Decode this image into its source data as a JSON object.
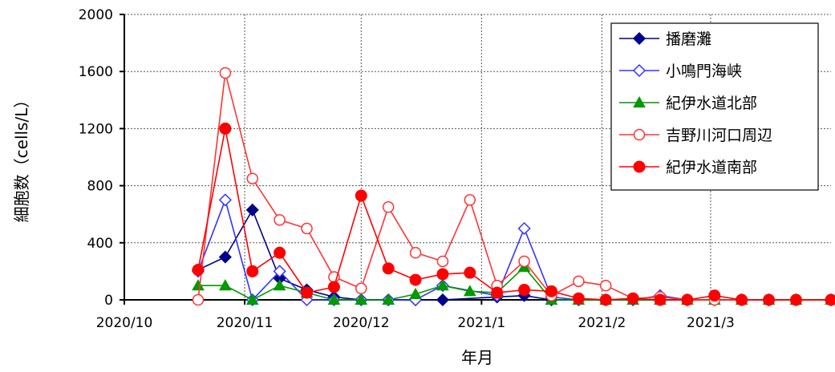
{
  "chart_data": {
    "type": "line",
    "xlabel": "年月",
    "ylabel": "細胞数（cells/L）",
    "ylim": [
      0,
      2000
    ],
    "yticks": [
      "0",
      "400",
      "800",
      "1200",
      "1600",
      "2000"
    ],
    "xticks": [
      {
        "t": 0,
        "label": "2020/10"
      },
      {
        "t": 31,
        "label": "2020/11"
      },
      {
        "t": 61,
        "label": "2020/12"
      },
      {
        "t": 92,
        "label": "2021/1"
      },
      {
        "t": 123,
        "label": "2021/2"
      },
      {
        "t": 151,
        "label": "2021/3"
      }
    ],
    "xlim": [
      0,
      182
    ],
    "grid": true,
    "legend_position": "top-right",
    "series": [
      {
        "name": "播磨灘",
        "color": "#00008b",
        "marker": "diamond-filled",
        "points": [
          [
            19,
            210
          ],
          [
            26,
            300
          ],
          [
            33,
            630
          ],
          [
            40,
            150
          ],
          [
            47,
            70
          ],
          [
            54,
            20
          ],
          [
            61,
            0
          ],
          [
            68,
            0
          ],
          [
            75,
            0
          ],
          [
            82,
            0
          ],
          [
            96,
            20
          ],
          [
            103,
            30
          ],
          [
            110,
            0
          ],
          [
            117,
            0
          ],
          [
            124,
            0
          ],
          [
            131,
            0
          ],
          [
            138,
            0
          ],
          [
            145,
            0
          ],
          [
            152,
            0
          ],
          [
            159,
            0
          ],
          [
            166,
            0
          ],
          [
            173,
            0
          ],
          [
            182,
            0
          ]
        ]
      },
      {
        "name": "小鳴門海峡",
        "color": "#3333ff",
        "marker": "diamond-open",
        "points": [
          [
            19,
            200
          ],
          [
            26,
            700
          ],
          [
            33,
            0
          ],
          [
            40,
            200
          ],
          [
            47,
            0
          ],
          [
            54,
            0
          ],
          [
            61,
            0
          ],
          [
            68,
            0
          ],
          [
            75,
            0
          ],
          [
            82,
            100
          ],
          [
            96,
            30
          ],
          [
            103,
            500
          ],
          [
            110,
            20
          ],
          [
            117,
            0
          ],
          [
            124,
            0
          ],
          [
            131,
            0
          ],
          [
            138,
            30
          ],
          [
            145,
            0
          ],
          [
            152,
            0
          ],
          [
            159,
            0
          ],
          [
            166,
            0
          ],
          [
            173,
            0
          ],
          [
            182,
            0
          ]
        ]
      },
      {
        "name": "紀伊水道北部",
        "color": "#009900",
        "marker": "triangle-filled",
        "points": [
          [
            19,
            100
          ],
          [
            26,
            100
          ],
          [
            33,
            0
          ],
          [
            40,
            100
          ],
          [
            47,
            50
          ],
          [
            54,
            0
          ],
          [
            61,
            0
          ],
          [
            68,
            0
          ],
          [
            75,
            40
          ],
          [
            82,
            100
          ],
          [
            89,
            60
          ],
          [
            96,
            50
          ],
          [
            103,
            230
          ],
          [
            110,
            0
          ],
          [
            117,
            0
          ],
          [
            124,
            0
          ],
          [
            131,
            0
          ],
          [
            138,
            0
          ],
          [
            145,
            0
          ],
          [
            152,
            0
          ],
          [
            159,
            0
          ],
          [
            166,
            0
          ],
          [
            173,
            0
          ],
          [
            182,
            0
          ]
        ]
      },
      {
        "name": "吉野川河口周辺",
        "color": "#ff3333",
        "marker": "circle-open",
        "points": [
          [
            19,
            0
          ],
          [
            26,
            1590
          ],
          [
            33,
            850
          ],
          [
            40,
            560
          ],
          [
            47,
            500
          ],
          [
            54,
            160
          ],
          [
            61,
            80
          ],
          [
            68,
            650
          ],
          [
            75,
            330
          ],
          [
            82,
            270
          ],
          [
            89,
            700
          ],
          [
            96,
            100
          ],
          [
            103,
            270
          ],
          [
            110,
            30
          ],
          [
            117,
            130
          ],
          [
            124,
            100
          ],
          [
            131,
            10
          ],
          [
            138,
            20
          ],
          [
            145,
            0
          ],
          [
            152,
            0
          ],
          [
            159,
            0
          ],
          [
            166,
            0
          ],
          [
            173,
            0
          ],
          [
            182,
            0
          ]
        ]
      },
      {
        "name": "紀伊水道南部",
        "color": "#ff0000",
        "marker": "circle-filled",
        "points": [
          [
            19,
            210
          ],
          [
            26,
            1200
          ],
          [
            33,
            200
          ],
          [
            40,
            330
          ],
          [
            47,
            50
          ],
          [
            54,
            90
          ],
          [
            61,
            730
          ],
          [
            68,
            220
          ],
          [
            75,
            140
          ],
          [
            82,
            180
          ],
          [
            89,
            190
          ],
          [
            96,
            50
          ],
          [
            103,
            70
          ],
          [
            110,
            60
          ],
          [
            117,
            10
          ],
          [
            124,
            0
          ],
          [
            131,
            10
          ],
          [
            138,
            0
          ],
          [
            145,
            0
          ],
          [
            152,
            30
          ],
          [
            159,
            0
          ],
          [
            166,
            0
          ],
          [
            173,
            0
          ],
          [
            182,
            0
          ]
        ]
      }
    ]
  }
}
